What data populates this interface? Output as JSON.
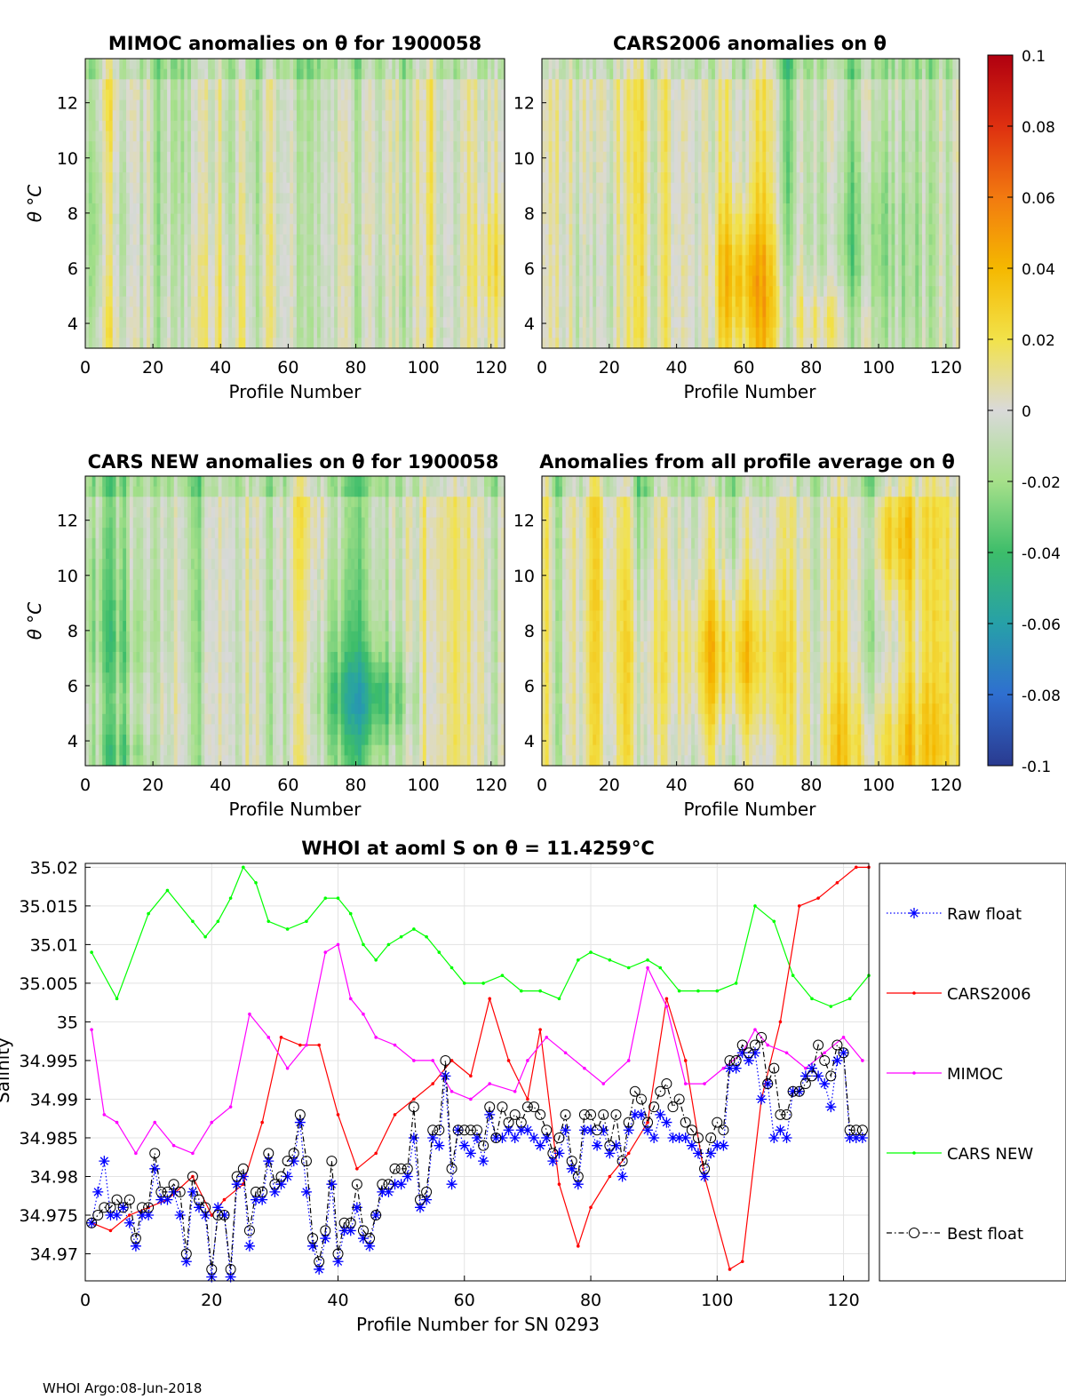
{
  "footer": "WHOI Argo:08-Jun-2018",
  "colorbar": {
    "min": -0.1,
    "max": 0.1,
    "ticks": [
      "0.1",
      "0.08",
      "0.06",
      "0.04",
      "0.02",
      "0",
      "-0.02",
      "-0.04",
      "-0.06",
      "-0.08",
      "-0.1"
    ],
    "stops": [
      "#2a3a8f",
      "#2f6fd0",
      "#27a0a8",
      "#3dbd6a",
      "#a6e08a",
      "#d9d9d9",
      "#f2e24a",
      "#f5b800",
      "#f27a10",
      "#de3010",
      "#b00010"
    ]
  },
  "heatmaps": [
    {
      "title": "MIMOC anomalies on θ  for 1900058",
      "xlabel": "Profile Number",
      "ylabel": "θ °C",
      "xticks": [
        "0",
        "20",
        "40",
        "60",
        "80",
        "100",
        "120"
      ],
      "yticks": [
        "4",
        "6",
        "8",
        "10",
        "12"
      ],
      "seed": 3
    },
    {
      "title": "CARS2006 anomalies on θ",
      "xlabel": "Profile Number",
      "ylabel": "",
      "xticks": [
        "0",
        "20",
        "40",
        "60",
        "80",
        "100",
        "120"
      ],
      "yticks": [
        "4",
        "6",
        "8",
        "10",
        "12"
      ],
      "seed": 11
    },
    {
      "title": "CARS NEW anomalies on θ for 1900058",
      "xlabel": "Profile Number",
      "ylabel": "θ °C",
      "xticks": [
        "0",
        "20",
        "40",
        "60",
        "80",
        "100",
        "120"
      ],
      "yticks": [
        "4",
        "6",
        "8",
        "10",
        "12"
      ],
      "seed": 7
    },
    {
      "title": "Anomalies from all profile average on θ",
      "xlabel": "Profile Number",
      "ylabel": "",
      "xticks": [
        "0",
        "20",
        "40",
        "60",
        "80",
        "100",
        "120"
      ],
      "yticks": [
        "4",
        "6",
        "8",
        "10",
        "12"
      ],
      "seed": 19
    }
  ],
  "chart_data": {
    "type": "line",
    "title": "WHOI at aoml S on θ = 11.4259°C",
    "xlabel": "Profile Number for SN 0293",
    "ylabel": "Salinity",
    "xlim": [
      0,
      124
    ],
    "ylim": [
      34.9665,
      35.0205
    ],
    "xticks": [
      "0",
      "20",
      "40",
      "60",
      "80",
      "100",
      "120"
    ],
    "yticks": [
      "35.02",
      "35.015",
      "35.01",
      "35.005",
      "35",
      "34.995",
      "34.99",
      "34.985",
      "34.98",
      "34.975",
      "34.97"
    ],
    "legend": [
      "Raw float",
      "CARS2006",
      "MIMOC",
      "CARS NEW",
      "Best float"
    ],
    "series": [
      {
        "name": "CARS NEW",
        "color": "#00ff00",
        "style": "solid-dot",
        "x": [
          1,
          5,
          10,
          13,
          17,
          19,
          21,
          23,
          25,
          27,
          29,
          32,
          35,
          38,
          40,
          42,
          44,
          46,
          48,
          50,
          52,
          54,
          56,
          58,
          60,
          63,
          66,
          69,
          72,
          75,
          78,
          80,
          83,
          86,
          89,
          91,
          94,
          97,
          100,
          103,
          106,
          109,
          112,
          115,
          118,
          121,
          124
        ],
        "y": [
          35.009,
          35.003,
          35.014,
          35.017,
          35.013,
          35.011,
          35.013,
          35.016,
          35.02,
          35.018,
          35.013,
          35.012,
          35.013,
          35.016,
          35.016,
          35.014,
          35.01,
          35.008,
          35.01,
          35.011,
          35.012,
          35.011,
          35.009,
          35.007,
          35.005,
          35.005,
          35.006,
          35.004,
          35.004,
          35.003,
          35.008,
          35.009,
          35.008,
          35.007,
          35.008,
          35.007,
          35.004,
          35.004,
          35.004,
          35.005,
          35.015,
          35.013,
          35.006,
          35.003,
          35.002,
          35.003,
          35.006
        ]
      },
      {
        "name": "CARS2006",
        "color": "#ff0000",
        "style": "solid-dot",
        "x": [
          1,
          4,
          7,
          10,
          13,
          17,
          20,
          22,
          25,
          28,
          31,
          34,
          37,
          40,
          43,
          46,
          49,
          52,
          55,
          58,
          61,
          64,
          67,
          70,
          72,
          75,
          78,
          80,
          83,
          86,
          89,
          92,
          95,
          98,
          102,
          104,
          107,
          110,
          113,
          116,
          119,
          122,
          124
        ],
        "y": [
          34.974,
          34.973,
          34.975,
          34.976,
          34.977,
          34.98,
          34.975,
          34.977,
          34.979,
          34.987,
          34.998,
          34.997,
          34.997,
          34.988,
          34.981,
          34.983,
          34.988,
          34.99,
          34.992,
          34.995,
          34.993,
          35.003,
          34.995,
          34.99,
          34.999,
          34.979,
          34.971,
          34.976,
          34.98,
          34.983,
          34.987,
          35.003,
          34.995,
          34.98,
          34.968,
          34.969,
          34.99,
          35.0,
          35.015,
          35.016,
          35.018,
          35.02,
          35.02
        ]
      },
      {
        "name": "MIMOC",
        "color": "#ff00ff",
        "style": "solid-dot",
        "x": [
          1,
          3,
          5,
          8,
          11,
          14,
          17,
          20,
          23,
          26,
          29,
          32,
          35,
          38,
          40,
          42,
          44,
          46,
          49,
          52,
          55,
          58,
          61,
          64,
          68,
          70,
          73,
          76,
          79,
          82,
          86,
          89,
          92,
          95,
          98,
          101,
          104,
          106,
          108,
          111,
          114,
          117,
          120,
          123
        ],
        "y": [
          34.999,
          34.988,
          34.987,
          34.983,
          34.987,
          34.984,
          34.983,
          34.987,
          34.989,
          35.001,
          34.998,
          34.994,
          34.997,
          35.009,
          35.01,
          35.003,
          35.001,
          34.998,
          34.997,
          34.995,
          34.995,
          34.991,
          34.99,
          34.992,
          34.991,
          34.995,
          34.998,
          34.996,
          34.994,
          34.992,
          34.995,
          35.007,
          35.002,
          34.992,
          34.992,
          34.994,
          34.996,
          34.999,
          34.997,
          34.996,
          34.994,
          34.996,
          34.998,
          34.995
        ]
      },
      {
        "name": "Raw float",
        "color": "#0000ff",
        "style": "dotted-star",
        "x": [
          1,
          2,
          3,
          4,
          5,
          6,
          7,
          8,
          9,
          10,
          11,
          12,
          13,
          14,
          15,
          16,
          17,
          18,
          19,
          20,
          21,
          22,
          23,
          24,
          25,
          26,
          27,
          28,
          29,
          30,
          31,
          32,
          33,
          34,
          35,
          36,
          37,
          38,
          39,
          40,
          41,
          42,
          43,
          44,
          45,
          46,
          47,
          48,
          49,
          50,
          51,
          52,
          53,
          54,
          55,
          56,
          57,
          58,
          59,
          60,
          61,
          62,
          63,
          64,
          65,
          66,
          67,
          68,
          69,
          70,
          71,
          72,
          73,
          74,
          75,
          76,
          77,
          78,
          79,
          80,
          81,
          82,
          83,
          84,
          85,
          86,
          87,
          88,
          89,
          90,
          91,
          92,
          93,
          94,
          95,
          96,
          97,
          98,
          99,
          100,
          101,
          102,
          103,
          104,
          105,
          106,
          107,
          108,
          109,
          110,
          111,
          112,
          113,
          114,
          115,
          116,
          117,
          118,
          119,
          120,
          121,
          122,
          123
        ],
        "y": [
          34.974,
          34.978,
          34.982,
          34.975,
          34.975,
          34.976,
          34.974,
          34.971,
          34.975,
          34.975,
          34.981,
          34.977,
          34.977,
          34.978,
          34.975,
          34.969,
          34.978,
          34.976,
          34.975,
          34.967,
          34.976,
          34.975,
          34.967,
          34.979,
          34.98,
          34.971,
          34.977,
          34.977,
          34.982,
          34.978,
          34.979,
          34.98,
          34.982,
          34.987,
          34.978,
          34.971,
          34.968,
          34.972,
          34.979,
          34.969,
          34.973,
          34.973,
          34.976,
          34.972,
          34.971,
          34.975,
          34.978,
          34.978,
          34.979,
          34.979,
          34.98,
          34.985,
          34.976,
          34.977,
          34.985,
          34.984,
          34.993,
          34.979,
          34.986,
          34.984,
          34.983,
          34.985,
          34.982,
          34.988,
          34.985,
          34.985,
          34.986,
          34.985,
          34.986,
          34.986,
          34.985,
          34.984,
          34.985,
          34.982,
          34.983,
          34.986,
          34.981,
          34.979,
          34.986,
          34.986,
          34.984,
          34.986,
          34.983,
          34.984,
          34.98,
          34.986,
          34.988,
          34.988,
          34.986,
          34.985,
          34.988,
          34.987,
          34.985,
          34.985,
          34.985,
          34.984,
          34.983,
          34.98,
          34.983,
          34.984,
          34.984,
          34.994,
          34.994,
          34.996,
          34.995,
          34.996,
          34.99,
          34.992,
          34.985,
          34.986,
          34.985,
          34.991,
          34.991,
          34.993,
          34.994,
          34.993,
          34.992,
          34.989,
          34.995,
          34.996,
          34.985,
          34.985,
          34.985
        ]
      },
      {
        "name": "Best float",
        "color": "#000000",
        "style": "dashdot-circle",
        "x": [
          1,
          2,
          3,
          4,
          5,
          6,
          7,
          8,
          9,
          10,
          11,
          12,
          13,
          14,
          15,
          16,
          17,
          18,
          19,
          20,
          21,
          22,
          23,
          24,
          25,
          26,
          27,
          28,
          29,
          30,
          31,
          32,
          33,
          34,
          35,
          36,
          37,
          38,
          39,
          40,
          41,
          42,
          43,
          44,
          45,
          46,
          47,
          48,
          49,
          50,
          51,
          52,
          53,
          54,
          55,
          56,
          57,
          58,
          59,
          60,
          61,
          62,
          63,
          64,
          65,
          66,
          67,
          68,
          69,
          70,
          71,
          72,
          73,
          74,
          75,
          76,
          77,
          78,
          79,
          80,
          81,
          82,
          83,
          84,
          85,
          86,
          87,
          88,
          89,
          90,
          91,
          92,
          93,
          94,
          95,
          96,
          97,
          98,
          99,
          100,
          101,
          102,
          103,
          104,
          105,
          106,
          107,
          108,
          109,
          110,
          111,
          112,
          113,
          114,
          115,
          116,
          117,
          118,
          119,
          120,
          121,
          122,
          123
        ],
        "y": [
          34.974,
          34.975,
          34.976,
          34.976,
          34.977,
          34.976,
          34.977,
          34.972,
          34.976,
          34.976,
          34.983,
          34.978,
          34.978,
          34.979,
          34.978,
          34.97,
          34.98,
          34.977,
          34.976,
          34.968,
          34.975,
          34.975,
          34.968,
          34.98,
          34.981,
          34.973,
          34.978,
          34.978,
          34.983,
          34.979,
          34.98,
          34.982,
          34.983,
          34.988,
          34.982,
          34.972,
          34.969,
          34.973,
          34.982,
          34.97,
          34.974,
          34.974,
          34.979,
          34.973,
          34.972,
          34.975,
          34.979,
          34.979,
          34.981,
          34.981,
          34.981,
          34.989,
          34.977,
          34.978,
          34.986,
          34.986,
          34.995,
          34.981,
          34.986,
          34.986,
          34.986,
          34.986,
          34.984,
          34.989,
          34.985,
          34.989,
          34.987,
          34.988,
          34.987,
          34.989,
          34.989,
          34.988,
          34.986,
          34.983,
          34.985,
          34.988,
          34.982,
          34.98,
          34.988,
          34.988,
          34.986,
          34.988,
          34.984,
          34.988,
          34.982,
          34.987,
          34.991,
          34.99,
          34.987,
          34.989,
          34.991,
          34.992,
          34.989,
          34.99,
          34.987,
          34.986,
          34.985,
          34.981,
          34.985,
          34.987,
          34.986,
          34.995,
          34.995,
          34.997,
          34.996,
          34.997,
          34.998,
          34.992,
          34.994,
          34.988,
          34.988,
          34.991,
          34.991,
          34.992,
          34.993,
          34.997,
          34.995,
          34.993,
          34.997,
          34.996,
          34.986,
          34.986,
          34.986
        ]
      }
    ]
  }
}
